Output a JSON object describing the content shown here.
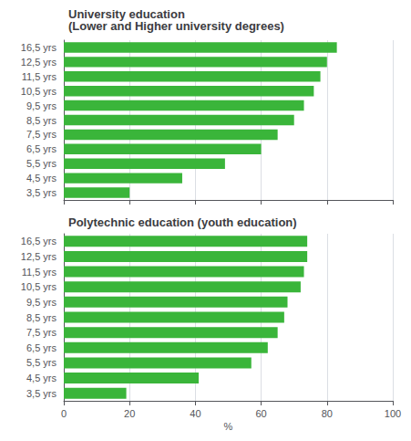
{
  "chart_data": [
    {
      "type": "bar",
      "orientation": "horizontal",
      "title": "University education\n(Lower and Higher university degrees)",
      "categories": [
        "3,5 yrs",
        "4,5 yrs",
        "5,5 yrs",
        "6,5 yrs",
        "7,5 yrs",
        "8,5 yrs",
        "9,5 yrs",
        "10,5 yrs",
        "11,5 yrs",
        "12,5 yrs",
        "16,5 yrs"
      ],
      "values": [
        20,
        36,
        49,
        60,
        65,
        70,
        73,
        76,
        78,
        80,
        83
      ],
      "color": "#3ab53a",
      "xlim": [
        0,
        100
      ],
      "xticks": [
        0,
        20,
        40,
        60,
        80,
        100
      ],
      "grid": true,
      "tick_labels": "y"
    },
    {
      "type": "bar",
      "orientation": "horizontal",
      "title": "Polytechnic education (youth education)",
      "categories": [
        "3,5 yrs",
        "4,5 yrs",
        "5,5 yrs",
        "6,5 yrs",
        "7,5 yrs",
        "8,5 yrs",
        "9,5 yrs",
        "10,5 yrs",
        "11,5 yrs",
        "12,5 yrs",
        "16,5 yrs"
      ],
      "values": [
        19,
        41,
        57,
        62,
        65,
        67,
        68,
        72,
        73,
        74,
        74
      ],
      "color": "#3ab53a",
      "xlabel": "%",
      "xlim": [
        0,
        100
      ],
      "xticks": [
        0,
        20,
        40,
        60,
        80,
        100
      ],
      "grid": true
    }
  ]
}
